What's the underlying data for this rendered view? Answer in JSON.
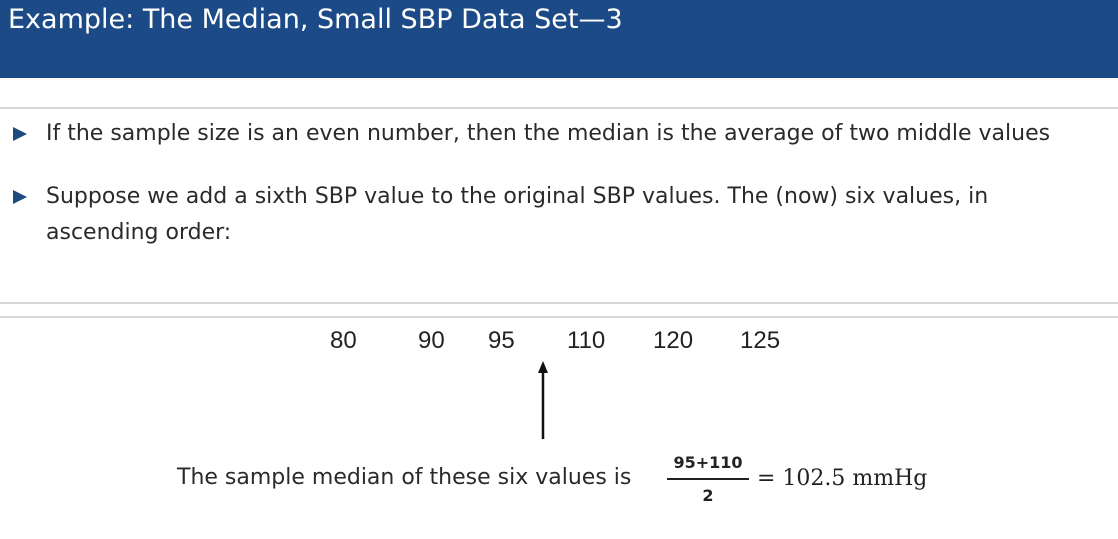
{
  "slide": {
    "title": "Example: The Median, Small SBP Data Set—3",
    "bullets": [
      "If the sample size is an even number, then the median is the average of two middle values",
      "Suppose we add a sixth SBP value to the original SBP values. The (now) six values, in",
      "ascending order:"
    ],
    "values": [
      "80",
      "90",
      "95",
      "110",
      "120",
      "125"
    ],
    "median_sentence": "The sample median of these six values is",
    "fraction": {
      "numerator": "95+110",
      "denominator": "2"
    },
    "result": "= 102.5 mmHg"
  },
  "colors": {
    "title_bar": "#1b4a86",
    "bullet": "#1f4a7d"
  },
  "icons": {
    "bullet": "triangle-right-icon",
    "pointer": "up-arrow-icon"
  }
}
